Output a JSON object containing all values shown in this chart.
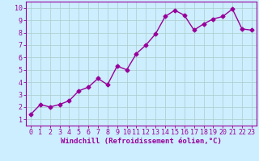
{
  "x": [
    0,
    1,
    2,
    3,
    4,
    5,
    6,
    7,
    8,
    9,
    10,
    11,
    12,
    13,
    14,
    15,
    16,
    17,
    18,
    19,
    20,
    21,
    22,
    23
  ],
  "y": [
    1.4,
    2.2,
    2.0,
    2.2,
    2.5,
    3.3,
    3.6,
    4.3,
    3.8,
    5.3,
    5.0,
    6.3,
    7.0,
    7.9,
    9.3,
    9.8,
    9.4,
    8.2,
    8.7,
    9.1,
    9.3,
    9.9,
    8.3,
    8.2
  ],
  "line_color": "#990099",
  "marker": "D",
  "marker_size": 2.5,
  "line_width": 1.0,
  "bg_color": "#cceeff",
  "grid_color": "#aacccc",
  "xlabel": "Windchill (Refroidissement éolien,°C)",
  "ylabel": "",
  "xlim": [
    -0.5,
    23.5
  ],
  "ylim": [
    0.5,
    10.5
  ],
  "yticks": [
    1,
    2,
    3,
    4,
    5,
    6,
    7,
    8,
    9,
    10
  ],
  "xticks": [
    0,
    1,
    2,
    3,
    4,
    5,
    6,
    7,
    8,
    9,
    10,
    11,
    12,
    13,
    14,
    15,
    16,
    17,
    18,
    19,
    20,
    21,
    22,
    23
  ],
  "tick_label_color": "#990099",
  "axis_color": "#990099",
  "xlabel_color": "#990099",
  "xlabel_fontsize": 6.5,
  "tick_fontsize": 6.0,
  "title": ""
}
